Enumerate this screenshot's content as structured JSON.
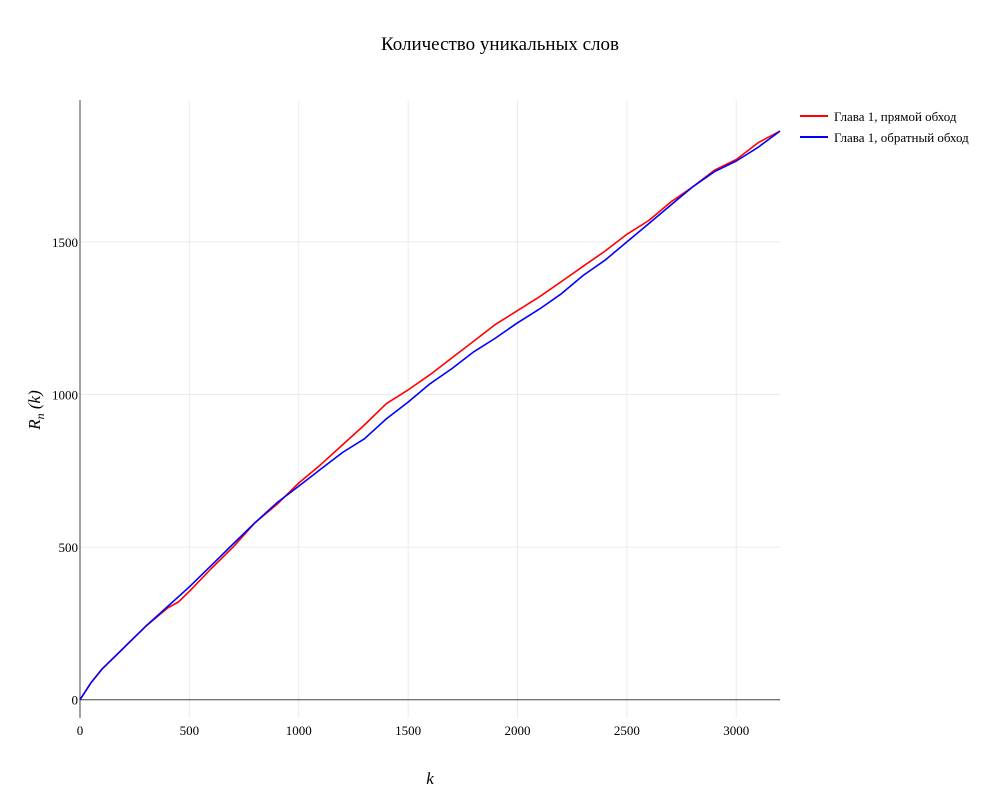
{
  "chart_data": {
    "type": "line",
    "title": "Количество уникальных слов",
    "xlabel": "k",
    "ylabel": "R_n (k)",
    "ylabel_main": "R",
    "ylabel_sub": "n",
    "ylabel_rest": " (k)",
    "xlim": [
      0,
      3200
    ],
    "ylim": [
      -60,
      1965
    ],
    "xticks": [
      0,
      500,
      1000,
      1500,
      2000,
      2500,
      3000
    ],
    "yticks": [
      0,
      500,
      1000,
      1500
    ],
    "grid": true,
    "legend_position": "top-right outside",
    "series": [
      {
        "name": "Глава 1, прямой обход",
        "color": "#ff0000",
        "x": [
          0,
          50,
          100,
          200,
          300,
          400,
          450,
          500,
          600,
          700,
          800,
          900,
          1000,
          1100,
          1200,
          1300,
          1400,
          1500,
          1600,
          1700,
          1800,
          1900,
          2000,
          2100,
          2200,
          2300,
          2400,
          2500,
          2600,
          2700,
          2800,
          2900,
          3000,
          3100,
          3200
        ],
        "y": [
          0,
          55,
          100,
          170,
          240,
          300,
          320,
          355,
          430,
          500,
          580,
          640,
          710,
          770,
          835,
          900,
          970,
          1015,
          1065,
          1120,
          1175,
          1230,
          1275,
          1320,
          1370,
          1420,
          1470,
          1525,
          1570,
          1630,
          1680,
          1735,
          1770,
          1825,
          1863
        ]
      },
      {
        "name": "Глава 1, обратный обход",
        "color": "#0000ff",
        "x": [
          0,
          50,
          100,
          200,
          300,
          400,
          500,
          600,
          700,
          800,
          900,
          1000,
          1100,
          1200,
          1300,
          1400,
          1500,
          1600,
          1700,
          1800,
          1900,
          2000,
          2100,
          2200,
          2300,
          2400,
          2500,
          2600,
          2700,
          2800,
          2900,
          3000,
          3100,
          3200
        ],
        "y": [
          0,
          55,
          100,
          170,
          240,
          305,
          370,
          440,
          510,
          580,
          645,
          700,
          755,
          810,
          855,
          920,
          975,
          1035,
          1085,
          1140,
          1185,
          1235,
          1280,
          1330,
          1390,
          1440,
          1500,
          1560,
          1620,
          1680,
          1730,
          1765,
          1810,
          1863
        ]
      }
    ]
  }
}
